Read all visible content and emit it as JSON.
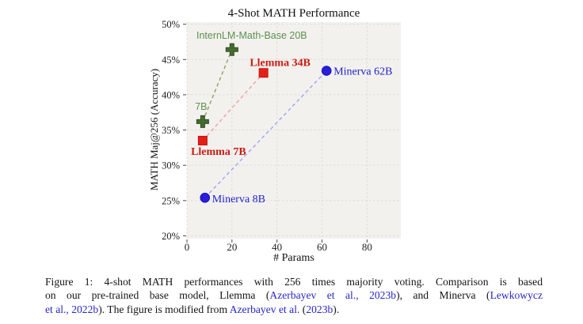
{
  "page": {
    "background": "#ffffff"
  },
  "chart_data": {
    "type": "scatter",
    "title": "4-Shot MATH Performance",
    "xlabel": "# Params",
    "ylabel": "MATH Maj@256 (Accuracy)",
    "xlim": [
      0,
      95
    ],
    "ylim": [
      19.6,
      50.3
    ],
    "xticks": [
      0,
      20,
      40,
      60,
      80
    ],
    "xtick_labels": [
      "0",
      "20",
      "40",
      "60",
      "80"
    ],
    "yticks": [
      20,
      25,
      30,
      35,
      40,
      45,
      50
    ],
    "ytick_labels": [
      "20%",
      "25%",
      "30%",
      "35%",
      "40%",
      "45%",
      "50%"
    ],
    "grid": true,
    "legend": "none",
    "panel_color": "#f2f1ee",
    "grid_color": "#dedcd9",
    "tick_color": "#444444",
    "tick_label_color": "#222222",
    "title_color": "#111111",
    "series": [
      {
        "name": "InternLM-Math-Base",
        "marker": "plus",
        "marker_color": "#466b31",
        "marker_edge": "#2f4d22",
        "line_color": "#85a464",
        "label_color": "#5d9150",
        "label_font": "sans",
        "label_bold": false,
        "label_size": 12.5,
        "points": [
          {
            "x": 7,
            "y": 36.2,
            "label": "7B",
            "dx": -2,
            "dy": -15,
            "anchor": "middle"
          },
          {
            "x": 20,
            "y": 46.4,
            "label": "InternLM-Math-Base 20B",
            "dx": 25,
            "dy": -14,
            "anchor": "middle"
          }
        ]
      },
      {
        "name": "Llemma",
        "marker": "square",
        "marker_color": "#e32119",
        "marker_edge": "#c51408",
        "line_color": "#f2a09d",
        "label_color": "#cc1c15",
        "label_font": "serif",
        "label_bold": true,
        "label_size": 14,
        "points": [
          {
            "x": 7,
            "y": 33.5,
            "label": "Llemma 7B",
            "dx": 20,
            "dy": 18,
            "anchor": "middle"
          },
          {
            "x": 34,
            "y": 43.1,
            "label": "Llemma 34B",
            "dx": 21,
            "dy": -9,
            "anchor": "middle"
          }
        ]
      },
      {
        "name": "Minerva",
        "marker": "circle",
        "marker_color": "#2a1ed8",
        "marker_edge": "#1a10bf",
        "line_color": "#a3a3f0",
        "label_color": "#2424cc",
        "label_font": "serif",
        "label_bold": false,
        "label_size": 14,
        "points": [
          {
            "x": 8,
            "y": 25.4,
            "label": "Minerva 8B",
            "dx": 9,
            "dy": 6,
            "anchor": "start"
          },
          {
            "x": 62,
            "y": 43.4,
            "label": "Minerva 62B",
            "dx": 9,
            "dy": 5,
            "anchor": "start"
          }
        ]
      }
    ]
  },
  "caption": {
    "text_color": "#141414",
    "link_color": "#2727c8",
    "lines": [
      {
        "justify": true,
        "segments": [
          {
            "t": "Figure 1: 4-shot MATH performances with 256 times majority voting. Comparison is based",
            "link": false
          }
        ]
      },
      {
        "justify": true,
        "segments": [
          {
            "t": "on our pre-trained base model, Llemma (",
            "link": false
          },
          {
            "t": "Azerbayev et al., 2023b",
            "link": true
          },
          {
            "t": "), and Minerva (",
            "link": false
          },
          {
            "t": "Lewkowycz",
            "link": true
          }
        ]
      },
      {
        "justify": false,
        "segments": [
          {
            "t": "et al., 2022b",
            "link": true
          },
          {
            "t": "). The figure is modified from ",
            "link": false
          },
          {
            "t": "Azerbayev et al.",
            "link": true
          },
          {
            "t": " (",
            "link": false
          },
          {
            "t": "2023b",
            "link": true
          },
          {
            "t": ").",
            "link": false
          }
        ]
      }
    ]
  }
}
